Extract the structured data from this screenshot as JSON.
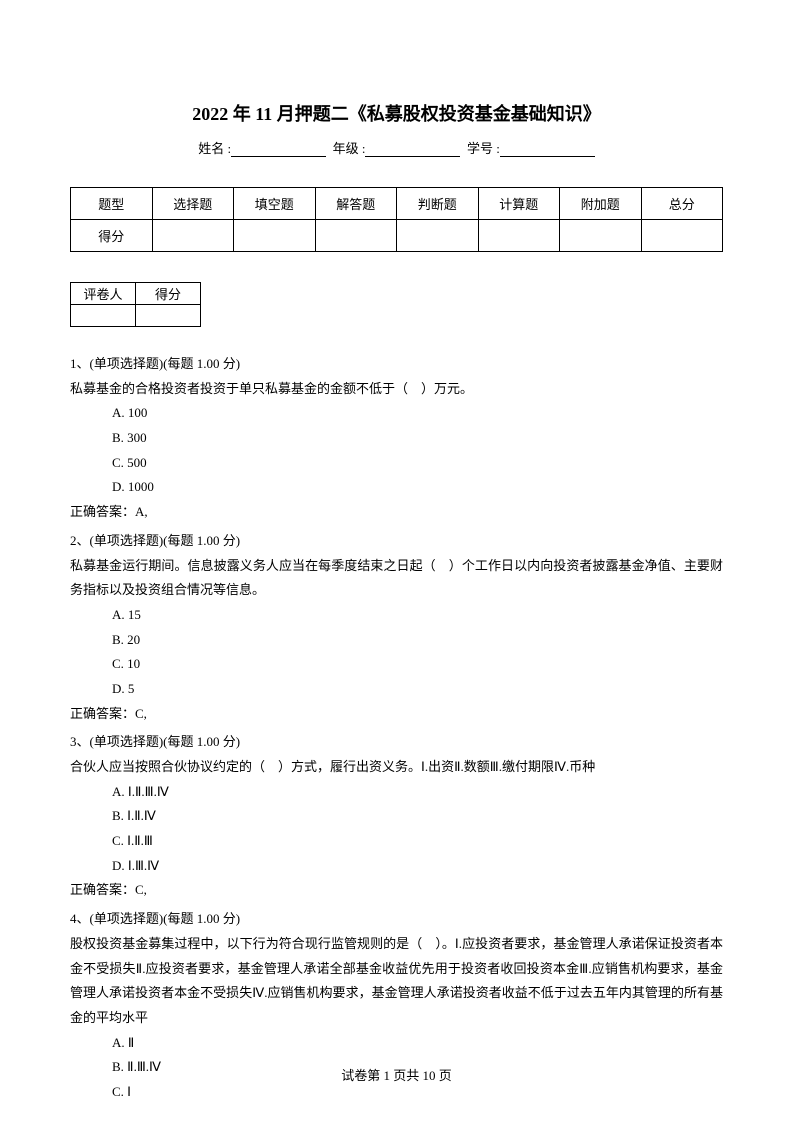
{
  "title": "2022 年 11 月押题二《私募股权投资基金基础知识》",
  "info": {
    "name_label": "姓名 :",
    "grade_label": "年级 :",
    "id_label": "学号 :"
  },
  "score_table": {
    "headers": [
      "题型",
      "选择题",
      "填空题",
      "解答题",
      "判断题",
      "计算题",
      "附加题",
      "总分"
    ],
    "row_label": "得分"
  },
  "reviewer_table": {
    "reviewer_label": "评卷人",
    "score_label": "得分"
  },
  "questions": [
    {
      "number": "1、",
      "type": "(单项选择题)(每题 1.00 分)",
      "text": "私募基金的合格投资者投资于单只私募基金的金额不低于（　）万元。",
      "options": [
        "A. 100",
        "B. 300",
        "C. 500",
        "D. 1000"
      ],
      "answer": "正确答案：A,"
    },
    {
      "number": "2、",
      "type": "(单项选择题)(每题 1.00 分)",
      "text": "私募基金运行期间。信息披露义务人应当在每季度结束之日起（　）个工作日以内向投资者披露基金净值、主要财务指标以及投资组合情况等信息。",
      "options": [
        "A. 15",
        "B. 20",
        "C. 10",
        "D. 5"
      ],
      "answer": "正确答案：C,"
    },
    {
      "number": "3、",
      "type": "(单项选择题)(每题 1.00 分)",
      "text": "合伙人应当按照合伙协议约定的（　）方式，履行出资义务。Ⅰ.出资Ⅱ.数额Ⅲ.缴付期限Ⅳ.币种",
      "options": [
        "A. Ⅰ.Ⅱ.Ⅲ.Ⅳ",
        "B. Ⅰ.Ⅱ.Ⅳ",
        "C. Ⅰ.Ⅱ.Ⅲ",
        "D. Ⅰ.Ⅲ.Ⅳ"
      ],
      "answer": "正确答案：C,"
    },
    {
      "number": "4、",
      "type": "(单项选择题)(每题 1.00 分)",
      "text": "股权投资基金募集过程中，以下行为符合现行监管规则的是（　）。Ⅰ.应投资者要求，基金管理人承诺保证投资者本金不受损失Ⅱ.应投资者要求，基金管理人承诺全部基金收益优先用于投资者收回投资本金Ⅲ.应销售机构要求，基金管理人承诺投资者本金不受损失Ⅳ.应销售机构要求，基金管理人承诺投资者收益不低于过去五年内其管理的所有基金的平均水平",
      "options": [
        "A. Ⅱ",
        "B. Ⅱ.Ⅲ.Ⅳ",
        "C. Ⅰ"
      ],
      "answer": ""
    }
  ],
  "footer": "试卷第 1 页共 10 页"
}
